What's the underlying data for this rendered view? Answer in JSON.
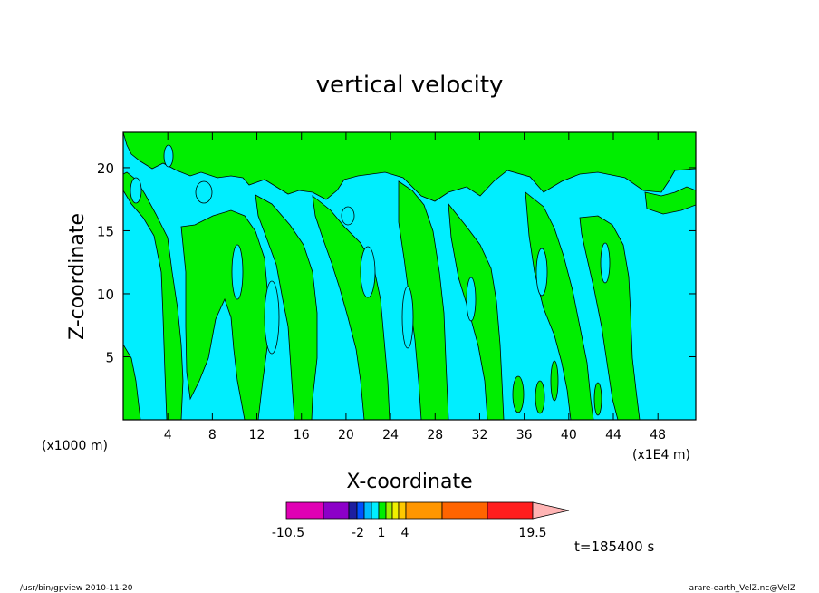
{
  "chart_data": {
    "type": "heatmap",
    "title": "vertical velocity",
    "xlabel": "X-coordinate",
    "ylabel": "Z-coordinate",
    "x_unit_left": "(x1000 m)",
    "x_unit_right": "(x1E4 m)",
    "xlim": [
      0,
      51.4
    ],
    "ylim": [
      0,
      22.8
    ],
    "xticks": [
      4,
      8,
      12,
      16,
      20,
      24,
      28,
      32,
      36,
      40,
      44,
      48
    ],
    "yticks": [
      5,
      10,
      15,
      20
    ],
    "time_label": "t=185400 s",
    "fields": {
      "negative_color": "#00eeff",
      "positive_color": "#00ee00"
    },
    "colorbar": {
      "levels_shown": [
        "-10.5",
        "-2",
        "1",
        "4",
        "19.5"
      ],
      "colors": [
        "#e000b4",
        "#8c00c8",
        "#1e1ea0",
        "#0050ff",
        "#00bbff",
        "#00eeff",
        "#00ee00",
        "#a0f000",
        "#f0f000",
        "#ffc800",
        "#ff9600",
        "#ff6400",
        "#ff1e1e",
        "#ff8080",
        "#ffb4b4"
      ]
    }
  },
  "footer": {
    "left": "/usr/bin/gpview   2010-11-20",
    "right": "arare-earth_VelZ.nc@VelZ"
  }
}
